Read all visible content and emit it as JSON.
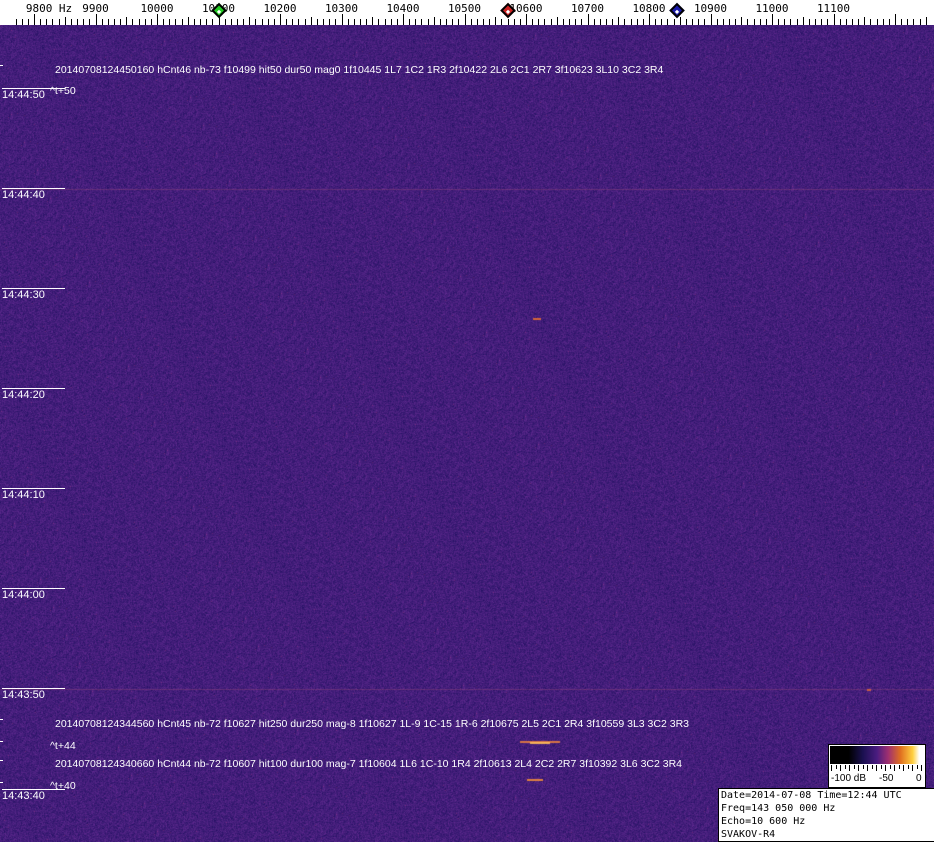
{
  "freq_axis": {
    "unit": "Hz",
    "labels": [
      "9800 Hz",
      "9900",
      "10000",
      "10100",
      "10200",
      "10300",
      "10400",
      "10500",
      "10600",
      "10700",
      "10800",
      "10900",
      "11000",
      "11100"
    ],
    "values": [
      9800,
      9900,
      10000,
      10100,
      10200,
      10300,
      10400,
      10500,
      10600,
      10700,
      10800,
      10900,
      11000,
      11100
    ],
    "markers": [
      {
        "name": "green-marker",
        "freq": 10100,
        "color": "#22cc22"
      },
      {
        "name": "red-marker",
        "freq": 10570,
        "color": "#cc2222"
      },
      {
        "name": "blue-marker",
        "freq": 10845,
        "color": "#1a1aaa"
      }
    ]
  },
  "time_labels": [
    "14:44:50",
    "14:44:40",
    "14:44:30",
    "14:44:20",
    "14:44:10",
    "14:44:00",
    "14:43:50",
    "14:43:40"
  ],
  "annotations": [
    {
      "text": "20140708124450160 hCnt46 nb-73 f10499 hit50 dur50 mag0 1f10445 1L7 1C2 1R3 2f10422 2L6 2C1 2R7 3f10623 3L10 3C2 3R4"
    },
    {
      "text": "^t+50"
    },
    {
      "text": "20140708124344560 hCnt45 nb-72 f10627 hit250 dur250 mag-8 1f10627 1L-9 1C-15 1R-6 2f10675 2L5 2C1 2R4 3f10559 3L3 3C2 3R3"
    },
    {
      "text": "^t+44"
    },
    {
      "text": "20140708124340660 hCnt44 nb-72 f10607 hit100 dur100 mag-7 1f10604 1L6 1C-10 1R4 2f10613 2L4 2C2 2R7 3f10392 3L6 3C2 3R4"
    },
    {
      "text": "^t+40"
    }
  ],
  "color_scale": {
    "labels": [
      "-100 dB",
      "-50",
      "0"
    ]
  },
  "info": {
    "date": "Date=2014-07-08 Time=12:44 UTC",
    "freq": "Freq=143 050 000 Hz",
    "echo": "Echo=10 600 Hz",
    "station": "SVAKOV-R4"
  }
}
